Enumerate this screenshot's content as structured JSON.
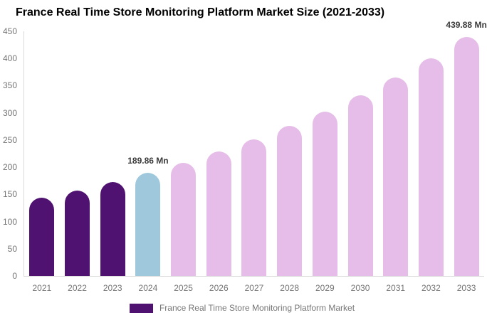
{
  "title": "France Real Time Store Monitoring Platform Market Size (2021-2033)",
  "chart_data": {
    "type": "bar",
    "title": "France Real Time Store Monitoring Platform Market Size (2021-2033)",
    "categories": [
      "2021",
      "2022",
      "2023",
      "2024",
      "2025",
      "2026",
      "2027",
      "2028",
      "2029",
      "2030",
      "2031",
      "2032",
      "2033"
    ],
    "values": [
      143.47,
      157.51,
      172.93,
      189.86,
      208.44,
      228.85,
      251.25,
      275.84,
      302.84,
      332.48,
      365.03,
      400.77,
      439.88
    ],
    "unit": "Mn",
    "xlabel": "",
    "ylabel": "",
    "ylim": [
      0,
      450
    ],
    "yticks": [
      0,
      50,
      100,
      150,
      200,
      250,
      300,
      350,
      400,
      450
    ],
    "grid": false,
    "legend_position": "bottom",
    "bar_colors": [
      "#4f1271",
      "#4f1271",
      "#4f1271",
      "#9fc8dd",
      "#e6bde8",
      "#e6bde8",
      "#e6bde8",
      "#e6bde8",
      "#e6bde8",
      "#e6bde8",
      "#e6bde8",
      "#e6bde8",
      "#e6bde8"
    ],
    "annotations": [
      {
        "index": 3,
        "text": "189.86 Mn"
      },
      {
        "index": 12,
        "text": "439.88 Mn"
      }
    ],
    "legend": [
      {
        "label": "France Real Time Store Monitoring Platform Market",
        "color": "#4f1271"
      }
    ]
  },
  "colors": {
    "background": "#ffffff",
    "title_text": "#000000",
    "axis_line": "#d9d9d9",
    "tick_label": "#757575",
    "annotation_text": "#3a3a3a",
    "historical_bar": "#4f1271",
    "current_year_bar": "#9fc8dd",
    "forecast_bar": "#e6bde8"
  }
}
